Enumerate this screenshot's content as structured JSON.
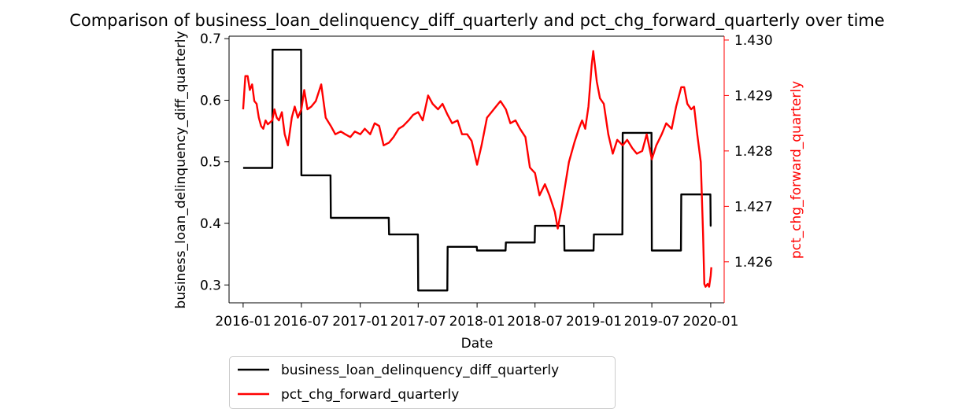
{
  "chart_data": {
    "type": "line",
    "title": "Comparison of business_loan_delinquency_diff_quarterly and pct_chg_forward_quarterly over time",
    "xlabel": "Date",
    "ylabel_left": "business_loan_delinquency_diff_quarterly",
    "ylabel_right": "pct_chg_forward_quarterly",
    "x_ticks": [
      "2016-01",
      "2016-07",
      "2017-01",
      "2017-07",
      "2018-01",
      "2018-07",
      "2019-01",
      "2019-07",
      "2020-01"
    ],
    "y_left_ticks": [
      "0.3",
      "0.4",
      "0.5",
      "0.6",
      "0.7"
    ],
    "y_right_ticks": [
      "1.426",
      "1.427",
      "1.428",
      "1.429",
      "1.430"
    ],
    "xlim": [
      "2015-11-18",
      "2020-02-12"
    ],
    "ylim_left": [
      0.271,
      0.704
    ],
    "ylim_right": [
      1.42526,
      1.43007
    ],
    "legend_position": "below chart",
    "colors": {
      "left_series": "#000000",
      "right_series": "#ff0000",
      "right_axis": "#ff0000"
    },
    "series": [
      {
        "name": "business_loan_delinquency_diff_quarterly",
        "axis": "left",
        "color": "#000000",
        "step": true,
        "points": [
          [
            "2016-01-01",
            0.49
          ],
          [
            "2016-04-01",
            0.49
          ],
          [
            "2016-04-02",
            0.682
          ],
          [
            "2016-06-30",
            0.682
          ],
          [
            "2016-07-01",
            0.478
          ],
          [
            "2016-09-30",
            0.478
          ],
          [
            "2016-10-01",
            0.409
          ],
          [
            "2017-03-31",
            0.409
          ],
          [
            "2017-04-01",
            0.382
          ],
          [
            "2017-06-30",
            0.382
          ],
          [
            "2017-07-01",
            0.291
          ],
          [
            "2017-09-30",
            0.291
          ],
          [
            "2017-10-01",
            0.362
          ],
          [
            "2017-12-31",
            0.362
          ],
          [
            "2018-01-01",
            0.356
          ],
          [
            "2018-03-31",
            0.356
          ],
          [
            "2018-04-01",
            0.369
          ],
          [
            "2018-06-30",
            0.369
          ],
          [
            "2018-07-01",
            0.396
          ],
          [
            "2018-09-30",
            0.396
          ],
          [
            "2018-10-01",
            0.356
          ],
          [
            "2018-12-31",
            0.356
          ],
          [
            "2019-01-01",
            0.382
          ],
          [
            "2019-03-31",
            0.382
          ],
          [
            "2019-04-01",
            0.547
          ],
          [
            "2019-06-30",
            0.547
          ],
          [
            "2019-07-01",
            0.356
          ],
          [
            "2019-09-30",
            0.356
          ],
          [
            "2019-10-01",
            0.447
          ],
          [
            "2019-12-31",
            0.447
          ],
          [
            "2020-01-01",
            0.396
          ],
          [
            "2020-01-03",
            0.396
          ]
        ]
      },
      {
        "name": "pct_chg_forward_quarterly",
        "axis": "right",
        "color": "#ff0000",
        "step": false,
        "points": [
          [
            "2016-01-01",
            1.42875
          ],
          [
            "2016-01-08",
            1.42935
          ],
          [
            "2016-01-15",
            1.42935
          ],
          [
            "2016-01-22",
            1.4291
          ],
          [
            "2016-01-29",
            1.4292
          ],
          [
            "2016-02-05",
            1.4289
          ],
          [
            "2016-02-12",
            1.42885
          ],
          [
            "2016-02-19",
            1.4286
          ],
          [
            "2016-02-26",
            1.42845
          ],
          [
            "2016-03-04",
            1.4284
          ],
          [
            "2016-03-11",
            1.42855
          ],
          [
            "2016-03-18",
            1.42848
          ],
          [
            "2016-04-01",
            1.42855
          ],
          [
            "2016-04-08",
            1.42875
          ],
          [
            "2016-04-15",
            1.4286
          ],
          [
            "2016-04-22",
            1.42855
          ],
          [
            "2016-05-01",
            1.4287
          ],
          [
            "2016-05-10",
            1.4283
          ],
          [
            "2016-05-20",
            1.4281
          ],
          [
            "2016-06-01",
            1.4286
          ],
          [
            "2016-06-10",
            1.4288
          ],
          [
            "2016-06-20",
            1.4286
          ],
          [
            "2016-07-01",
            1.42875
          ],
          [
            "2016-07-10",
            1.4291
          ],
          [
            "2016-07-20",
            1.42875
          ],
          [
            "2016-08-01",
            1.4288
          ],
          [
            "2016-08-15",
            1.4289
          ],
          [
            "2016-09-01",
            1.4292
          ],
          [
            "2016-09-15",
            1.4286
          ],
          [
            "2016-10-01",
            1.42845
          ],
          [
            "2016-10-15",
            1.4283
          ],
          [
            "2016-11-01",
            1.42835
          ],
          [
            "2016-11-15",
            1.4283
          ],
          [
            "2016-12-01",
            1.42825
          ],
          [
            "2016-12-15",
            1.42835
          ],
          [
            "2017-01-01",
            1.4283
          ],
          [
            "2017-01-15",
            1.4284
          ],
          [
            "2017-02-01",
            1.4283
          ],
          [
            "2017-02-15",
            1.4285
          ],
          [
            "2017-03-01",
            1.42845
          ],
          [
            "2017-03-15",
            1.4281
          ],
          [
            "2017-04-01",
            1.42815
          ],
          [
            "2017-04-15",
            1.42825
          ],
          [
            "2017-05-01",
            1.4284
          ],
          [
            "2017-05-15",
            1.42845
          ],
          [
            "2017-06-01",
            1.42855
          ],
          [
            "2017-06-15",
            1.42865
          ],
          [
            "2017-07-01",
            1.4287
          ],
          [
            "2017-07-15",
            1.42855
          ],
          [
            "2017-08-01",
            1.429
          ],
          [
            "2017-08-15",
            1.42885
          ],
          [
            "2017-09-01",
            1.42875
          ],
          [
            "2017-09-15",
            1.42885
          ],
          [
            "2017-10-01",
            1.42865
          ],
          [
            "2017-10-15",
            1.4285
          ],
          [
            "2017-11-01",
            1.42855
          ],
          [
            "2017-11-15",
            1.4283
          ],
          [
            "2017-12-01",
            1.4283
          ],
          [
            "2017-12-15",
            1.42818
          ],
          [
            "2018-01-01",
            1.42775
          ],
          [
            "2018-01-15",
            1.4281
          ],
          [
            "2018-02-01",
            1.4286
          ],
          [
            "2018-02-15",
            1.4287
          ],
          [
            "2018-03-01",
            1.4288
          ],
          [
            "2018-03-15",
            1.4289
          ],
          [
            "2018-04-01",
            1.42875
          ],
          [
            "2018-04-15",
            1.4285
          ],
          [
            "2018-05-01",
            1.42855
          ],
          [
            "2018-05-15",
            1.4284
          ],
          [
            "2018-06-01",
            1.42825
          ],
          [
            "2018-06-15",
            1.4277
          ],
          [
            "2018-07-01",
            1.4276
          ],
          [
            "2018-07-15",
            1.4272
          ],
          [
            "2018-08-01",
            1.4274
          ],
          [
            "2018-08-15",
            1.4272
          ],
          [
            "2018-09-01",
            1.4269
          ],
          [
            "2018-09-10",
            1.4266
          ],
          [
            "2018-09-20",
            1.4269
          ],
          [
            "2018-10-01",
            1.4273
          ],
          [
            "2018-10-15",
            1.4278
          ],
          [
            "2018-11-01",
            1.42815
          ],
          [
            "2018-11-15",
            1.4284
          ],
          [
            "2018-11-25",
            1.42855
          ],
          [
            "2018-12-05",
            1.4284
          ],
          [
            "2018-12-15",
            1.4288
          ],
          [
            "2018-12-25",
            1.42955
          ],
          [
            "2018-12-30",
            1.4298
          ],
          [
            "2019-01-10",
            1.42925
          ],
          [
            "2019-01-20",
            1.42895
          ],
          [
            "2019-02-01",
            1.42885
          ],
          [
            "2019-02-15",
            1.4283
          ],
          [
            "2019-03-01",
            1.42795
          ],
          [
            "2019-03-15",
            1.4282
          ],
          [
            "2019-04-01",
            1.4281
          ],
          [
            "2019-04-15",
            1.4282
          ],
          [
            "2019-05-01",
            1.42805
          ],
          [
            "2019-05-15",
            1.42795
          ],
          [
            "2019-06-01",
            1.428
          ],
          [
            "2019-06-15",
            1.4283
          ],
          [
            "2019-07-01",
            1.42785
          ],
          [
            "2019-07-15",
            1.4281
          ],
          [
            "2019-08-01",
            1.4283
          ],
          [
            "2019-08-15",
            1.4285
          ],
          [
            "2019-09-01",
            1.4284
          ],
          [
            "2019-09-15",
            1.4288
          ],
          [
            "2019-10-01",
            1.42915
          ],
          [
            "2019-10-10",
            1.42915
          ],
          [
            "2019-10-20",
            1.42885
          ],
          [
            "2019-11-01",
            1.42875
          ],
          [
            "2019-11-10",
            1.4288
          ],
          [
            "2019-11-20",
            1.4283
          ],
          [
            "2019-12-01",
            1.4278
          ],
          [
            "2019-12-08",
            1.4265
          ],
          [
            "2019-12-12",
            1.4256
          ],
          [
            "2019-12-16",
            1.42555
          ],
          [
            "2019-12-22",
            1.4256
          ],
          [
            "2019-12-27",
            1.42555
          ],
          [
            "2020-01-01",
            1.42575
          ],
          [
            "2020-01-03",
            1.4259
          ]
        ]
      }
    ]
  }
}
